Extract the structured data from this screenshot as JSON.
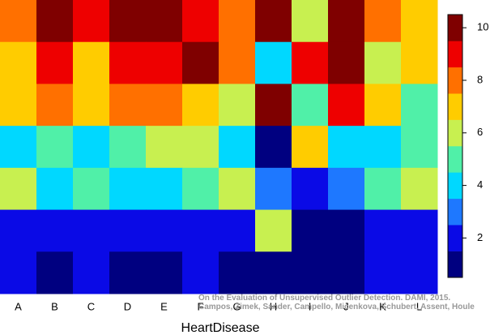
{
  "chart_data": {
    "type": "heatmap",
    "x_label": "HeartDisease",
    "categories": [
      "A",
      "B",
      "C",
      "D",
      "E",
      "F",
      "G",
      "H",
      "I",
      "J",
      "K",
      "L"
    ],
    "values": [
      [
        8,
        10,
        9,
        10,
        10,
        9,
        8,
        10,
        6,
        10,
        8,
        7
      ],
      [
        7,
        9,
        7,
        9,
        9,
        10,
        8,
        4,
        9,
        10,
        6,
        7
      ],
      [
        7,
        8,
        7,
        8,
        8,
        7,
        6,
        10,
        5,
        9,
        7,
        5
      ],
      [
        4,
        5,
        4,
        5,
        6,
        6,
        4,
        1,
        7,
        4,
        4,
        5
      ],
      [
        6,
        4,
        5,
        4,
        4,
        5,
        6,
        3,
        2,
        3,
        5,
        6
      ],
      [
        2,
        2,
        2,
        2,
        2,
        2,
        2,
        6,
        1,
        1,
        2,
        2
      ],
      [
        2,
        1,
        2,
        1,
        1,
        2,
        1,
        1,
        1,
        1,
        2,
        2
      ]
    ],
    "colors": [
      "#000080",
      "#0a0ae6",
      "#1e78ff",
      "#00d8ff",
      "#50f0a8",
      "#c8f050",
      "#ffcc00",
      "#ff7000",
      "#ee0000",
      "#7f0000"
    ],
    "clim": [
      0.5,
      10.5
    ],
    "cticks": [
      2,
      4,
      6,
      8,
      10
    ],
    "source_note": [
      "On the Evaluation of Unsupervised Outlier Detection. DAMI, 2015.",
      "Campos, Zimek, Sander, Campello, Micenkova, Schubert, Assent, Houle"
    ]
  }
}
